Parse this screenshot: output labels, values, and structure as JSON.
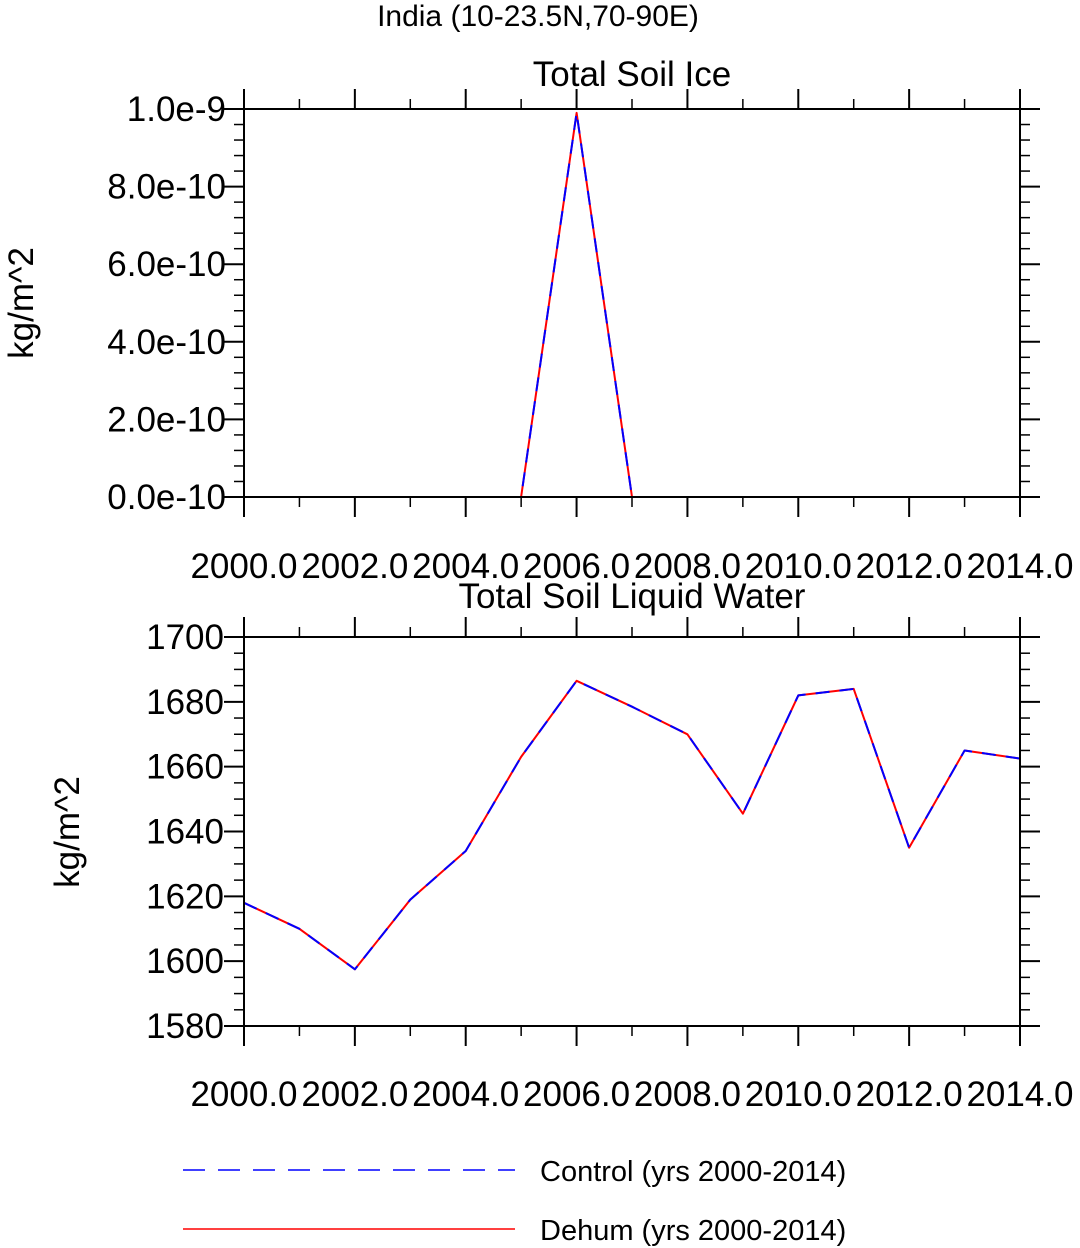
{
  "header": {
    "region": "India (10-23.5N,70-90E)"
  },
  "legend": {
    "placement": "bottom",
    "entries": [
      {
        "label": "Control (yrs 2000-2014)",
        "color": "#0000ff",
        "style": "dashed"
      },
      {
        "label": "Dehum (yrs 2000-2014)",
        "color": "#ff0000",
        "style": "solid"
      }
    ]
  },
  "chart_data": [
    {
      "type": "line",
      "title": "Total Soil Ice",
      "xlabel": "",
      "ylabel": "kg/m^2",
      "xlim": [
        2000,
        2014
      ],
      "ylim": [
        0,
        1e-09
      ],
      "xticks": [
        2000,
        2002,
        2004,
        2006,
        2008,
        2010,
        2012,
        2014
      ],
      "xtick_labels": [
        "2000.0",
        "2002.0",
        "2004.0",
        "2006.0",
        "2008.0",
        "2010.0",
        "2012.0",
        "2014.0"
      ],
      "yticks": [
        0,
        2e-10,
        4e-10,
        6e-10,
        8e-10,
        1e-09
      ],
      "ytick_labels": [
        "0.0e-10",
        "2.0e-10",
        "4.0e-10",
        "6.0e-10",
        "8.0e-10",
        "1.0e-9"
      ],
      "x": [
        2000,
        2001,
        2002,
        2003,
        2004,
        2005,
        2006,
        2007,
        2008,
        2009,
        2010,
        2011,
        2012,
        2013,
        2014
      ],
      "series": [
        {
          "name": "Control (yrs 2000-2014)",
          "color": "#0000ff",
          "style": "dashed",
          "values": [
            0,
            0,
            0,
            0,
            0,
            0,
            9.9e-10,
            0,
            0,
            0,
            0,
            0,
            0,
            0,
            0
          ]
        },
        {
          "name": "Dehum (yrs 2000-2014)",
          "color": "#ff0000",
          "style": "solid",
          "values": [
            0,
            0,
            0,
            0,
            0,
            0,
            9.9e-10,
            0,
            0,
            0,
            0,
            0,
            0,
            0,
            0
          ]
        }
      ],
      "grid": false
    },
    {
      "type": "line",
      "title": "Total Soil Liquid Water",
      "xlabel": "",
      "ylabel": "kg/m^2",
      "xlim": [
        2000,
        2014
      ],
      "ylim": [
        1580,
        1700
      ],
      "xticks": [
        2000,
        2002,
        2004,
        2006,
        2008,
        2010,
        2012,
        2014
      ],
      "xtick_labels": [
        "2000.0",
        "2002.0",
        "2004.0",
        "2006.0",
        "2008.0",
        "2010.0",
        "2012.0",
        "2014.0"
      ],
      "yticks": [
        1580,
        1600,
        1620,
        1640,
        1660,
        1680,
        1700
      ],
      "ytick_labels": [
        "1580",
        "1600",
        "1620",
        "1640",
        "1660",
        "1680",
        "1700"
      ],
      "x": [
        2000,
        2001,
        2002,
        2003,
        2004,
        2005,
        2006,
        2007,
        2008,
        2009,
        2010,
        2011,
        2012,
        2013,
        2014
      ],
      "series": [
        {
          "name": "Control (yrs 2000-2014)",
          "color": "#0000ff",
          "style": "dashed",
          "values": [
            1618,
            1610,
            1597.5,
            1619,
            1634,
            1663,
            1686.5,
            1678.5,
            1670,
            1645.5,
            1682,
            1684,
            1635,
            1665,
            1662.5
          ]
        },
        {
          "name": "Dehum (yrs 2000-2014)",
          "color": "#ff0000",
          "style": "solid",
          "values": [
            1618,
            1610,
            1597.5,
            1619,
            1634,
            1663,
            1686.5,
            1678.5,
            1670,
            1645.5,
            1682,
            1684,
            1635,
            1665,
            1662.5
          ]
        }
      ],
      "grid": false
    }
  ]
}
